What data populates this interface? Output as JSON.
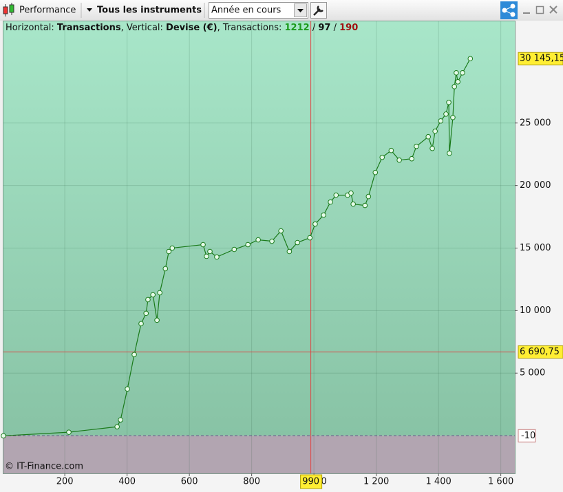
{
  "toolbar": {
    "view": "Performance",
    "instruments": "Tous les instruments",
    "period": "Année en cours"
  },
  "chart_data": {
    "type": "line",
    "info": [
      {
        "text": "Horizontal: "
      },
      {
        "text": "Transactions",
        "bold": true
      },
      {
        "text": ", Vertical: "
      },
      {
        "text": "Devise (€)",
        "bold": true
      },
      {
        "text": ", Transactions: "
      },
      {
        "text": "1212",
        "color": "#1c9a1c"
      },
      {
        "text": " / "
      },
      {
        "text": "97",
        "color": "#111111"
      },
      {
        "text": " / "
      },
      {
        "text": "190",
        "color": "#a01010"
      }
    ],
    "x": [
      3,
      213,
      368,
      379,
      401,
      423,
      445,
      461,
      467,
      483,
      496,
      505,
      523,
      534,
      545,
      644,
      655,
      666,
      688,
      744,
      788,
      821,
      865,
      894,
      921,
      947,
      987,
      1004,
      1031,
      1053,
      1071,
      1108,
      1119,
      1126,
      1164,
      1175,
      1197,
      1219,
      1248,
      1274,
      1314,
      1329,
      1367,
      1380,
      1389,
      1407,
      1424,
      1433,
      1435,
      1446,
      1451,
      1457,
      1462,
      1477,
      1502
    ],
    "series": [
      {
        "color": "#1a7a1a",
        "values": [
          -10,
          275,
          714,
          1264,
          3736,
          6484,
          8956,
          9780,
          10879,
          11264,
          9231,
          11429,
          13352,
          14725,
          15000,
          15275,
          14341,
          14725,
          14286,
          14890,
          15275,
          15659,
          15549,
          16374,
          14725,
          15440,
          15824,
          16923,
          17637,
          18681,
          19231,
          19231,
          19396,
          18516,
          18407,
          19121,
          21044,
          22253,
          22802,
          22033,
          22143,
          23132,
          23901,
          22967,
          24341,
          25165,
          25714,
          26648,
          22582,
          25440,
          27912,
          29011,
          28297,
          29011,
          30145.15
        ]
      }
    ],
    "xlim": [
      3,
      1645
    ],
    "ylim": [
      -3020,
      33130
    ],
    "xticks": [
      200,
      400,
      600,
      800,
      {
        "value": 1000,
        "label": "1 000"
      },
      {
        "value": 1200,
        "label": "1 200"
      },
      {
        "value": 1400,
        "label": "1 400"
      },
      {
        "value": 1600,
        "label": "1 600"
      }
    ],
    "yticks": [
      {
        "value": 5000,
        "label": "5 000"
      },
      {
        "value": 10000,
        "label": "10 000"
      },
      {
        "value": 15000,
        "label": "15 000"
      },
      {
        "value": 20000,
        "label": "20 000"
      },
      {
        "value": 25000,
        "label": "25 000"
      }
    ],
    "baseline": -10,
    "last_value": {
      "value": 30145.15,
      "label": "30 145,15"
    },
    "crosshair": {
      "x": 990,
      "y": 6690.75,
      "y_label": "6 690,75"
    },
    "grid": true,
    "copyright": "© IT-Finance.com"
  }
}
